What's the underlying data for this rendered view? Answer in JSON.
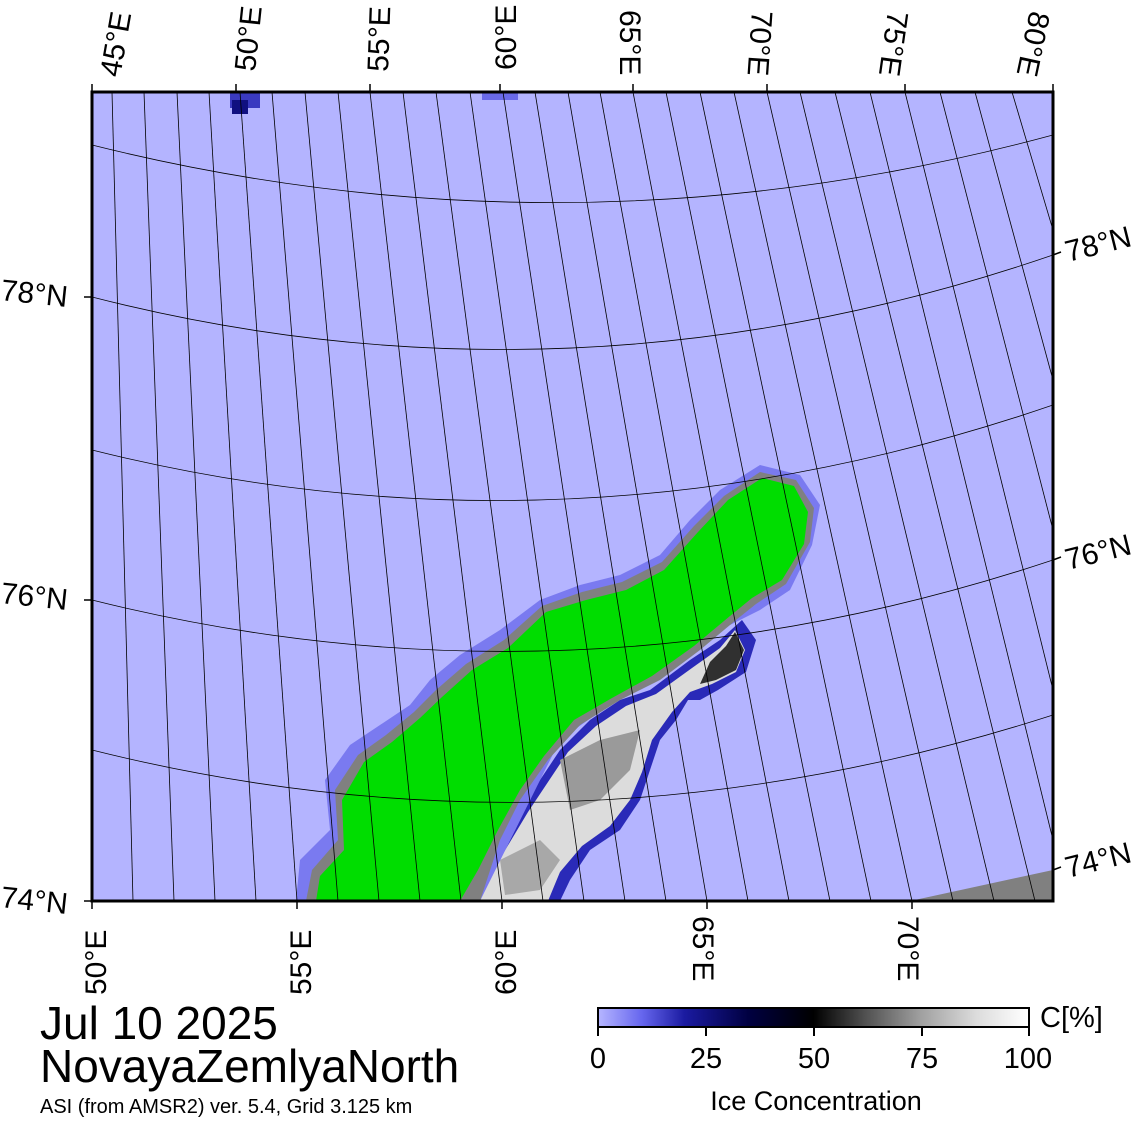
{
  "map": {
    "colors": {
      "ocean": "#b4b4ff",
      "land": "#00dd00",
      "coast": "#808080",
      "ice_edge": "#4444dd",
      "ice_dense": "#e6e6e6",
      "frame": "#000000",
      "graticule": "#000000"
    },
    "top_lon_labels": [
      "45°E",
      "50°E",
      "55°E",
      "60°E",
      "65°E",
      "70°E",
      "75°E",
      "80°E"
    ],
    "bottom_lon_labels": [
      "50°E",
      "55°E",
      "60°E",
      "65°E",
      "70°E"
    ],
    "left_lat_labels": [
      "78°N",
      "76°N",
      "74°N"
    ],
    "right_lat_labels": [
      "78°N",
      "76°N",
      "74°N"
    ],
    "features": {
      "land_mass": "Novaya Zemlya North",
      "sea_ice": "ice along east coast"
    }
  },
  "titles": {
    "date": "Jul 10 2025",
    "region": "NovayaZemlyaNorth",
    "subtitle": "ASI (from AMSR2) ver. 5.4,  Grid 3.125 km"
  },
  "colorbar": {
    "tick_labels": [
      "0",
      "25",
      "50",
      "75",
      "100"
    ],
    "unit": "C[%]",
    "title": "Ice Concentration",
    "gradient_colors": [
      "#b4b4ff",
      "#1a1aa0",
      "#000000",
      "#a0a0a0",
      "#ffffff"
    ]
  }
}
